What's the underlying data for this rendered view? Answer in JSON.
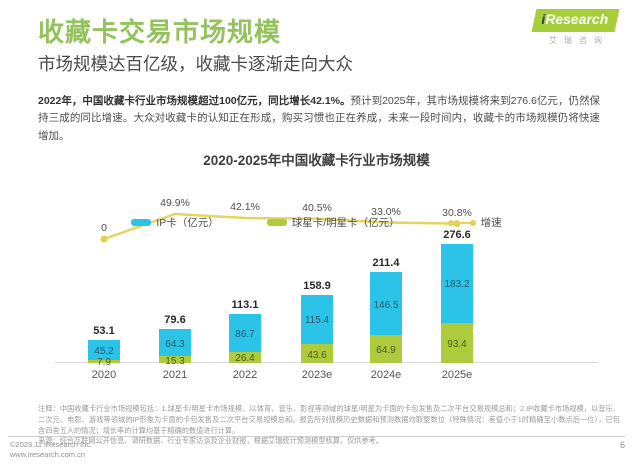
{
  "header": {
    "title": "收藏卡交易市场规模",
    "subtitle": "市场规模达百亿级，收藏卡逐渐走向大众",
    "logo": {
      "brand_i": "i",
      "brand_rest": "Research",
      "brand_cn": "艾瑞咨询"
    }
  },
  "intro": {
    "bold": "2022年，中国收藏卡行业市场规模超过100亿元，同比增长42.1%。",
    "regular": "预计到2025年，其市场规模将来到276.6亿元，仍然保持三成的同比增速。大众对收藏卡的认知正在形成，购买习惯也正在养成，未来一段时间内，收藏卡的市场规模仍将快速增加。"
  },
  "chart_data": {
    "type": "bar",
    "stacked": true,
    "title": "2020-2025年中国收藏卡行业市场规模",
    "categories": [
      "2020",
      "2021",
      "2022",
      "2023e",
      "2024e",
      "2025e"
    ],
    "series": [
      {
        "name": "IP卡（亿元）",
        "color": "#2BC3E8",
        "values": [
          45.2,
          64.3,
          86.7,
          115.4,
          146.5,
          183.2
        ]
      },
      {
        "name": "球星卡/明星卡（亿元）",
        "color": "#AECB3E",
        "values": [
          7.9,
          15.3,
          26.4,
          43.6,
          64.9,
          93.4
        ]
      }
    ],
    "totals": [
      53.1,
      79.6,
      113.1,
      158.9,
      211.4,
      276.6
    ],
    "growth_line": {
      "name": "增速",
      "color": "#E6D45C",
      "values_pct": [
        0,
        49.9,
        42.1,
        40.5,
        33.0,
        30.8
      ],
      "labels": [
        "0",
        "49.9%",
        "42.1%",
        "40.5%",
        "33.0%",
        "30.8%"
      ]
    },
    "ylabel": "亿元",
    "grid": false,
    "legend_position": "bottom"
  },
  "notes": {
    "note": "注释：中国收藏卡行业市场规模包括：1.球星卡/明星卡市场规模，以体育、音乐、影视等领域的球星/明星为卡面的卡包发售及二次平台交易规模总和；2.IP收藏卡市场规模，以音乐、二次元、电影、游戏等领域的IP形象为卡面的卡包发售及二次平台交易规模总和。报告所列规模历史数据和预测数据均取整数位（特殊情况：差值小于1时精确至小数点后一位），已包含四舍五入的情况；增长率的计算均基于精确的数值进行计算。",
    "source": "来源：综合互联网公开信息、调研数据、行业专家访谈及企业财报，根据艾瑞统计预测模型核算，仅供参考。"
  },
  "footer": {
    "copyright": "©2023.11 iResearch Inc.",
    "website": "www.iresearch.com.cn",
    "page_number": "6"
  }
}
